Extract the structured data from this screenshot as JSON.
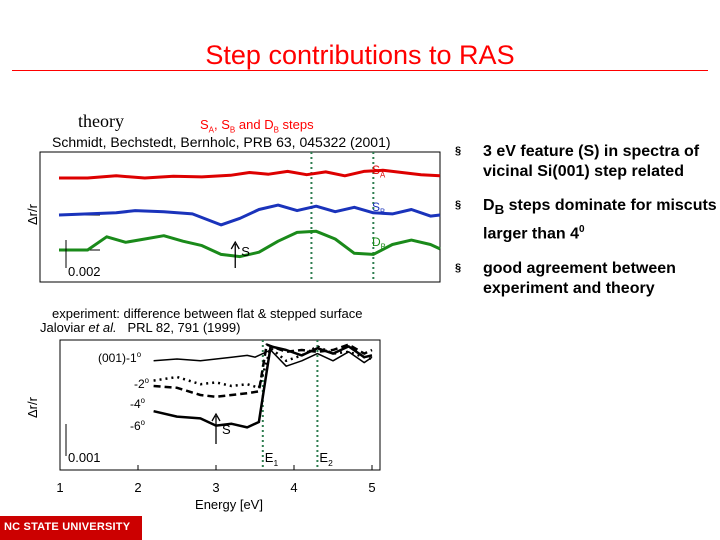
{
  "slide": {
    "title": "Step contributions to RAS",
    "theory_label": "theory",
    "steps_caption": {
      "sa_letter": "S",
      "sa_sub": "A",
      "sep1": ", ",
      "sb_letter": "S",
      "sb_sub": "B",
      "and": " and ",
      "db_letter": "D",
      "db_sub": "B",
      "tail": " steps"
    },
    "theory_ref": "Schmidt, Bechstedt, Bernholc, PRB 63, 045322 (2001)",
    "exp_caption": "experiment: difference between flat & stepped surface",
    "exp_ref": {
      "authors": "Jaloviar ",
      "etal": "et al.",
      "journal": "PRL 82, 791 (1999)"
    },
    "bullets": [
      {
        "marker": "§",
        "text": "3 eV feature (S) in spectra of vicinal Si(001) step related"
      },
      {
        "marker": "§",
        "text": "D",
        "sub": "B",
        "rest": " steps dominate for miscuts larger than 4",
        "sup": "0"
      },
      {
        "marker": "§",
        "text": "good agreement between experiment  and theory"
      }
    ],
    "footer": "NC STATE UNIVERSITY"
  },
  "chart_data": [
    {
      "type": "line",
      "title": "",
      "ylabel": "Δr/r",
      "xlim": [
        1,
        5.2
      ],
      "scale_bar": "0.002",
      "colors": {
        "SA": "#dd0000",
        "SB": "#1a33bb",
        "DB": "#1a8a1a",
        "marker_lines": "#2e7d4f"
      },
      "vertical_markers": [
        3.85,
        4.5
      ],
      "series": [
        {
          "label": "S",
          "label_sub": "A",
          "color": "#dd0000",
          "x": [
            1.2,
            1.5,
            1.8,
            2.1,
            2.4,
            2.7,
            3.0,
            3.2,
            3.4,
            3.6,
            3.8,
            4.0,
            4.2,
            4.4,
            4.6,
            4.8,
            5.0,
            5.2
          ],
          "y": [
            0,
            0,
            0.2,
            0,
            0.15,
            0.1,
            0.25,
            0.5,
            0.35,
            0.6,
            0.3,
            0.55,
            0.2,
            0.6,
            0.7,
            0.5,
            0.3,
            0.2
          ]
        },
        {
          "label": "S",
          "label_sub": "B",
          "color": "#1a33bb",
          "x": [
            1.2,
            1.5,
            1.8,
            2.0,
            2.3,
            2.6,
            2.9,
            3.1,
            3.3,
            3.5,
            3.7,
            3.9,
            4.1,
            4.3,
            4.5,
            4.7,
            4.9,
            5.1,
            5.2
          ],
          "y": [
            0,
            0.1,
            0.2,
            0.4,
            0.3,
            0.1,
            -0.9,
            -0.3,
            0.5,
            0.9,
            0.4,
            0.8,
            0.3,
            0.7,
            0.2,
            0.1,
            0.5,
            -0.1,
            0
          ]
        },
        {
          "label": "D",
          "label_sub": "B",
          "color": "#1a8a1a",
          "x": [
            1.2,
            1.5,
            1.7,
            1.9,
            2.1,
            2.3,
            2.5,
            2.7,
            2.9,
            3.1,
            3.3,
            3.5,
            3.7,
            3.9,
            4.1,
            4.3,
            4.5,
            4.7,
            4.9,
            5.1,
            5.2
          ],
          "y": [
            0,
            0,
            1.2,
            0.7,
            1.0,
            1.3,
            0.8,
            0.4,
            -0.4,
            -0.6,
            -0.2,
            0.8,
            1.6,
            1.7,
            1.0,
            -0.3,
            -0.4,
            0.5,
            0.9,
            0.5,
            0.1
          ]
        }
      ],
      "annotations": [
        {
          "text": "S",
          "x": 3.05
        }
      ]
    },
    {
      "type": "line",
      "title": "",
      "xlabel": "Energy [eV]",
      "ylabel": "Δr/r",
      "xlim": [
        1,
        5
      ],
      "xticks": [
        1,
        2,
        3,
        4,
        5
      ],
      "scale_bar": "0.001",
      "vertical_markers": [
        3.6,
        4.3
      ],
      "series": [
        {
          "label": "(001)-1",
          "sup": "o",
          "style": "solid",
          "width": 1.5,
          "x": [
            2.2,
            2.5,
            2.8,
            3.0,
            3.2,
            3.4,
            3.5,
            3.7,
            3.9,
            4.1,
            4.3,
            4.5,
            4.7,
            4.9,
            5.0
          ],
          "y": [
            1.0,
            1.05,
            1.0,
            1.05,
            1.1,
            1.15,
            1.1,
            1.3,
            0.85,
            1.0,
            1.2,
            1.0,
            1.25,
            0.95,
            1.1
          ]
        },
        {
          "label": "-2",
          "sup": "o",
          "style": "dotted",
          "width": 2.5,
          "x": [
            2.2,
            2.5,
            2.8,
            3.0,
            3.2,
            3.4,
            3.55,
            3.7,
            3.9,
            4.1,
            4.3,
            4.5,
            4.7,
            4.9,
            5.0
          ],
          "y": [
            0.45,
            0.55,
            0.35,
            0.4,
            0.3,
            0.35,
            0.25,
            1.35,
            1.0,
            1.15,
            1.4,
            1.2,
            1.25,
            1.1,
            1.05
          ]
        },
        {
          "label": "-4",
          "sup": "o",
          "style": "dashed",
          "width": 2.5,
          "x": [
            2.2,
            2.5,
            2.8,
            3.0,
            3.2,
            3.4,
            3.55,
            3.65,
            3.9,
            4.1,
            4.3,
            4.5,
            4.7,
            4.9,
            5.0
          ],
          "y": [
            0.3,
            0.25,
            0.05,
            0.0,
            0.05,
            0.1,
            0.15,
            1.45,
            1.25,
            1.3,
            1.25,
            1.3,
            1.45,
            1.2,
            1.3
          ]
        },
        {
          "label": "-6",
          "sup": "o",
          "style": "solid",
          "width": 2.5,
          "x": [
            2.2,
            2.5,
            2.8,
            3.0,
            3.2,
            3.4,
            3.55,
            3.7,
            3.9,
            4.1,
            4.3,
            4.5,
            4.7,
            4.9,
            5.0
          ],
          "y": [
            -0.4,
            -0.55,
            -0.6,
            -0.8,
            -0.75,
            -0.85,
            -0.7,
            1.4,
            1.3,
            1.15,
            1.35,
            1.2,
            1.4,
            1.1,
            1.15
          ]
        }
      ],
      "annotations": [
        {
          "text": "S",
          "x": 3.0
        },
        {
          "text": "E",
          "sub": "1",
          "x": 3.6
        },
        {
          "text": "E",
          "sub": "2",
          "x": 4.3
        }
      ]
    }
  ]
}
